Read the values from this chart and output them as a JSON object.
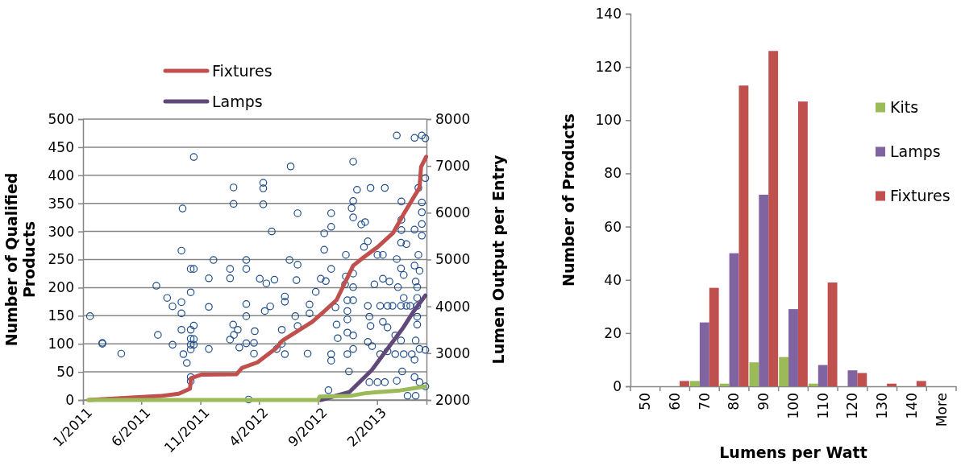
{
  "chart_data": [
    {
      "type": "line",
      "ylabel": "Number of Qualified Products",
      "y2label": "Lumen Output per Entry",
      "legend": "top",
      "grid": "y",
      "xlim": [
        "2011-01-01",
        "2013-06-09"
      ],
      "xticks": [
        {
          "value": "2011-01-01",
          "label": "1/2011"
        },
        {
          "value": "2011-06-01",
          "label": "6/2011"
        },
        {
          "value": "2011-11-01",
          "label": "11/2011"
        },
        {
          "value": "2012-04-01",
          "label": "4/2012"
        },
        {
          "value": "2012-09-01",
          "label": "9/2012"
        },
        {
          "value": "2013-02-01",
          "label": "2/2013"
        }
      ],
      "ylim": [
        0,
        500
      ],
      "yticks": [
        0,
        50,
        100,
        150,
        200,
        250,
        300,
        350,
        400,
        450,
        500
      ],
      "y2lim": [
        2000,
        8000
      ],
      "y2ticks": [
        2000,
        3000,
        4000,
        5000,
        6000,
        7000,
        8000
      ],
      "series": [
        {
          "type": "scatter",
          "axis": "y2",
          "marker": "circle",
          "color": "#1f4e8c",
          "x": [
            "2011-01-19",
            "2011-02-20",
            "2011-02-20",
            "2011-04-10",
            "2011-07-10",
            "2011-07-14",
            "2011-08-07",
            "2011-08-21",
            "2011-08-21",
            "2011-09-13",
            "2011-09-13",
            "2011-09-13",
            "2011-09-13",
            "2011-09-16",
            "2011-09-18",
            "2011-09-27",
            "2011-10-07",
            "2011-10-15",
            "2011-10-07",
            "2011-10-07",
            "2011-10-07",
            "2011-10-07",
            "2011-10-07",
            "2011-10-07",
            "2011-10-07",
            "2011-10-15",
            "2011-10-15",
            "2011-10-15",
            "2011-10-15",
            "2011-11-23",
            "2011-11-23",
            "2011-11-23",
            "2011-12-05",
            "2012-01-17",
            "2012-01-17",
            "2012-01-17",
            "2012-01-25",
            "2012-01-27",
            "2012-01-26",
            "2012-01-26",
            "2012-02-06",
            "2012-02-10",
            "2012-02-28",
            "2012-02-28",
            "2012-02-28",
            "2012-02-28",
            "2012-02-28",
            "2012-03-05",
            "2012-03-21",
            "2012-03-19",
            "2012-03-19",
            "2012-04-03",
            "2012-04-20",
            "2012-05-11",
            "2012-04-12",
            "2012-04-12",
            "2012-04-12",
            "2012-05-04",
            "2012-04-16",
            "2012-04-30",
            "2012-05-17",
            "2012-05-30",
            "2012-06-07",
            "2012-06-07",
            "2012-06-07",
            "2012-05-30",
            "2012-06-22",
            "2012-06-19",
            "2012-07-10",
            "2012-07-10",
            "2012-07-07",
            "2012-07-04",
            "2012-07-10",
            "2012-08-05",
            "2012-08-10",
            "2012-08-10",
            "2012-08-26",
            "2012-09-08",
            "2012-09-21",
            "2012-09-17",
            "2012-09-17",
            "2012-10-05",
            "2012-10-05",
            "2012-10-05",
            "2012-10-16",
            "2012-10-19",
            "2012-10-22",
            "2012-10-05",
            "2012-10-05",
            "2012-09-28",
            "2012-11-12",
            "2012-11-12",
            "2012-11-10",
            "2012-11-16",
            "2012-11-16",
            "2012-11-16",
            "2012-11-16",
            "2012-11-16",
            "2012-11-20",
            "2012-12-01",
            "2012-12-01",
            "2012-11-27",
            "2012-12-01",
            "2012-12-11",
            "2012-12-01",
            "2012-12-01",
            "2012-12-01",
            "2012-12-01",
            "2012-12-01",
            "2012-12-22",
            "2013-01-01",
            "2012-12-29",
            "2013-01-08",
            "2013-01-15",
            "2013-01-08",
            "2013-01-12",
            "2013-01-15",
            "2013-01-08",
            "2013-01-12",
            "2013-02-02",
            "2013-02-16",
            "2013-02-21",
            "2013-01-25",
            "2013-02-16",
            "2013-03-05",
            "2013-02-09",
            "2013-02-28",
            "2013-03-13",
            "2013-04-04",
            "2013-04-18",
            "2013-02-16",
            "2013-02-28",
            "2013-03-20",
            "2013-01-19",
            "2013-02-09",
            "2013-02-28",
            "2013-03-20",
            "2013-02-02",
            "2013-02-21",
            "2013-03-24",
            "2013-04-04",
            "2013-04-18",
            "2013-04-05",
            "2013-04-05",
            "2013-04-05",
            "2013-04-04",
            "2013-04-11",
            "2013-03-27",
            "2013-04-11",
            "2013-04-28",
            "2013-04-04",
            "2013-04-11",
            "2013-05-02",
            "2013-03-24",
            "2013-04-07",
            "2013-04-21",
            "2013-05-12",
            "2013-05-09",
            "2013-05-19",
            "2013-05-19",
            "2013-05-09",
            "2013-05-22",
            "2013-05-12",
            "2013-05-16",
            "2013-05-16",
            "2013-05-16",
            "2013-05-16",
            "2013-05-16",
            "2013-05-12",
            "2013-05-22",
            "2013-05-09",
            "2013-05-09",
            "2013-05-22",
            "2013-05-28",
            "2013-05-28",
            "2013-05-28",
            "2013-05-28",
            "2013-06-06",
            "2013-06-06",
            "2013-06-06",
            "2013-03-24",
            "2013-05-09",
            "2013-05-28",
            "2013-06-06"
          ],
          "values": [
            3790,
            3220,
            3200,
            2990,
            4440,
            3390,
            4180,
            4000,
            3180,
            5190,
            4090,
            3850,
            3500,
            6090,
            2980,
            2790,
            4800,
            4800,
            4300,
            3500,
            3310,
            3180,
            3080,
            2490,
            2400,
            7190,
            3590,
            3300,
            3180,
            4600,
            3990,
            3090,
            4990,
            4800,
            4600,
            3290,
            3610,
            3390,
            6540,
            6190,
            3500,
            3120,
            4990,
            4800,
            4050,
            3790,
            3210,
            2010,
            3470,
            3220,
            2990,
            4590,
            4490,
            4570,
            6640,
            6520,
            6180,
            5600,
            3900,
            4000,
            3090,
            3200,
            2980,
            4210,
            4100,
            3500,
            6990,
            4990,
            5990,
            4890,
            4560,
            3790,
            3580,
            2990,
            4040,
            3850,
            4310,
            4590,
            4540,
            5560,
            5210,
            5990,
            5700,
            4800,
            3980,
            3610,
            3320,
            2980,
            2840,
            2210,
            5100,
            4640,
            4470,
            4130,
            3900,
            3720,
            3440,
            2980,
            2610,
            7090,
            6250,
            6100,
            5900,
            6490,
            4700,
            4410,
            4130,
            3380,
            3090,
            5750,
            5800,
            5270,
            5390,
            6530,
            4010,
            3780,
            3580,
            3240,
            2380,
            5100,
            5100,
            6530,
            4470,
            4590,
            4530,
            4010,
            4010,
            4010,
            4010,
            4010,
            3670,
            3550,
            3380,
            3150,
            2980,
            3040,
            2980,
            2380,
            2380,
            5010,
            5360,
            5330,
            5850,
            5630,
            6240,
            4810,
            4670,
            4410,
            4180,
            4010,
            3270,
            2980,
            2980,
            2410,
            2610,
            2090,
            2090,
            5640,
            5100,
            6530,
            4870,
            4760,
            4530,
            4410,
            4180,
            4010,
            3780,
            3610,
            3270,
            3090,
            2860,
            2490,
            2380,
            6220,
            6010,
            5760,
            5510,
            6740,
            3070,
            2290,
            7650,
            7600,
            7650,
            7590
          ]
        },
        {
          "name": "Fixtures",
          "color": "#c0504d",
          "x": [
            "2011-01-15",
            "2011-07-20",
            "2011-09-06",
            "2011-10-05",
            "2011-10-08",
            "2011-11-03",
            "2012-02-03",
            "2012-02-17",
            "2012-03-28",
            "2012-05-15",
            "2012-06-01",
            "2012-08-17",
            "2012-09-14",
            "2012-10-19",
            "2012-12-01",
            "2012-12-28",
            "2013-02-02",
            "2013-03-14",
            "2013-04-10",
            "2013-05-01",
            "2013-05-22",
            "2013-05-26",
            "2013-06-08"
          ],
          "values": [
            0,
            7,
            11,
            20,
            39,
            45,
            46,
            57,
            67,
            92,
            106,
            139,
            156,
            178,
            239,
            254,
            272,
            297,
            330,
            354,
            378,
            415,
            433
          ]
        },
        {
          "name": "Lamps",
          "color": "#60497a",
          "x": [
            "2012-09-08",
            "2012-11-21",
            "2013-01-18",
            "2013-03-01",
            "2013-04-10",
            "2013-05-07",
            "2013-06-06"
          ],
          "values": [
            0,
            14,
            53,
            92,
            129,
            158,
            186
          ]
        },
        {
          "color": "#9bbb59",
          "x": [
            "2011-01-15",
            "2012-09-01",
            "2012-09-05",
            "2012-11-21",
            "2013-01-01",
            "2013-02-02",
            "2013-04-01",
            "2013-06-06"
          ],
          "values": [
            0,
            0,
            6,
            7,
            12,
            14,
            17,
            24
          ]
        }
      ]
    },
    {
      "type": "bar",
      "xlabel": "Lumens per Watt",
      "ylabel": "Number of Products",
      "legend": "right",
      "categories": [
        "50",
        "60",
        "70",
        "80",
        "90",
        "100",
        "110",
        "120",
        "130",
        "140",
        "More"
      ],
      "ylim": [
        0,
        140
      ],
      "yticks": [
        0,
        20,
        40,
        60,
        80,
        100,
        120,
        140
      ],
      "series": [
        {
          "name": "Kits",
          "color": "#9bbb59",
          "values": [
            0,
            0,
            2,
            1,
            9,
            11,
            1,
            0,
            0,
            0,
            0
          ]
        },
        {
          "name": "Lamps",
          "color": "#8064a2",
          "values": [
            0,
            0,
            24,
            50,
            72,
            29,
            8,
            6,
            0,
            0,
            0
          ]
        },
        {
          "name": "Fixtures",
          "color": "#c0504d",
          "values": [
            0,
            2,
            37,
            113,
            126,
            107,
            39,
            5,
            1,
            2,
            0
          ]
        }
      ]
    }
  ]
}
